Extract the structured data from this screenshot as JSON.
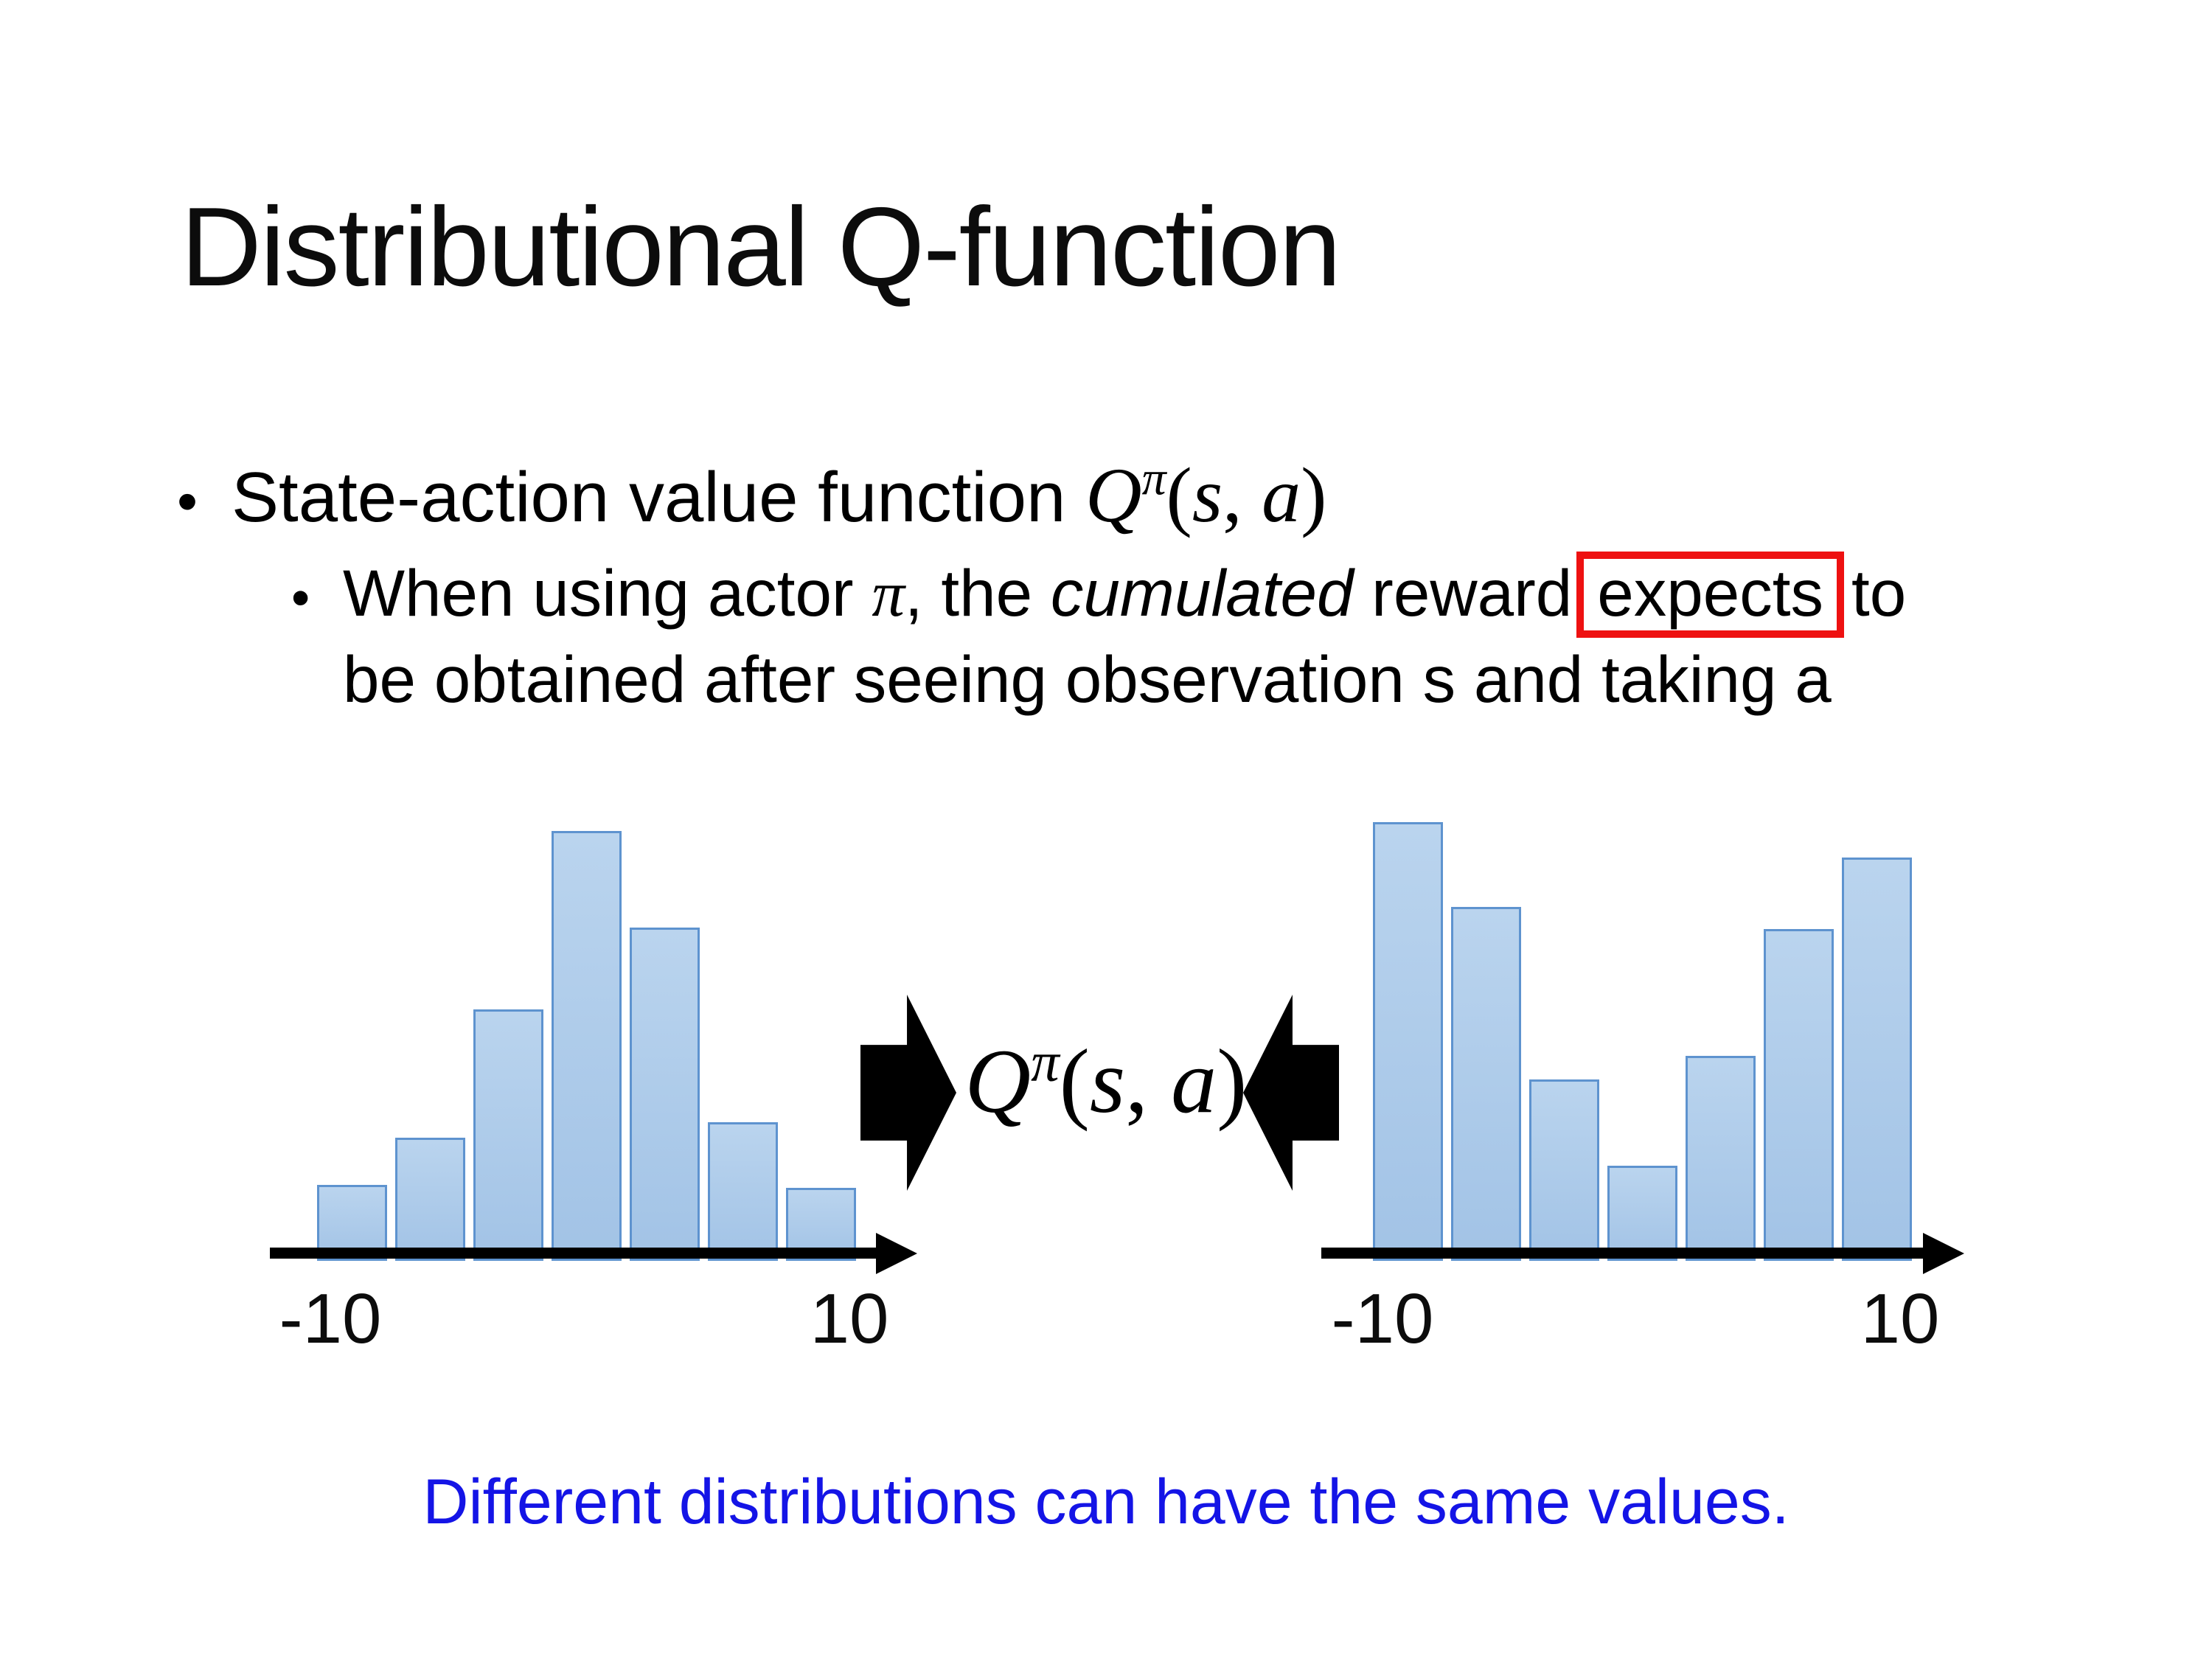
{
  "slide": {
    "title": "Distributional Q-function",
    "bullet_char": "•",
    "bullet1": {
      "text": "State-action value function "
    },
    "formula": {
      "base": "Q",
      "sup": "π",
      "open": "(",
      "arg1": "s",
      "sep": ", ",
      "arg2": "a",
      "close": ")"
    },
    "bullet2": {
      "seg1": "When using actor ",
      "pi": "π",
      "seg2": ", the ",
      "italic_word": "cumulated",
      "seg3": " reward",
      "boxed_word": "expects",
      "seg4": "to",
      "line2": "be obtained after seeing observation s and taking a"
    },
    "caption": "Different distributions can have the same values.",
    "colors": {
      "caption": "#1414e6",
      "highlight_box": "#ee1111",
      "bar_fill_top": "#bad4ee",
      "bar_fill_bottom": "#a2c3e6",
      "bar_border": "#5e93cf",
      "axis": "#000000"
    }
  },
  "chart_data": [
    {
      "type": "bar",
      "title": "Left return distribution (bell-shaped, single mode)",
      "bins": 7,
      "values": [
        0.177,
        0.286,
        0.585,
        1.0,
        0.775,
        0.322,
        0.17
      ],
      "x_axis": {
        "min": -10,
        "max": 10,
        "tick_labels": [
          "-10",
          "10"
        ]
      },
      "ylabel": "relative frequency (unlabeled)",
      "ylim": [
        0,
        1.05
      ],
      "grid": false,
      "legend": "none",
      "annotation": "feeds into Qπ(s, a) via right-pointing arrow"
    },
    {
      "type": "bar",
      "title": "Right return distribution (U-shaped, bimodal)",
      "bins": 7,
      "values": [
        1.021,
        0.823,
        0.422,
        0.221,
        0.477,
        0.772,
        0.938
      ],
      "x_axis": {
        "min": -10,
        "max": 10,
        "tick_labels": [
          "-10",
          "10"
        ]
      },
      "ylabel": "relative frequency (unlabeled)",
      "ylim": [
        0,
        1.05
      ],
      "grid": false,
      "legend": "none",
      "annotation": "feeds into Qπ(s, a) via left-pointing arrow"
    }
  ]
}
